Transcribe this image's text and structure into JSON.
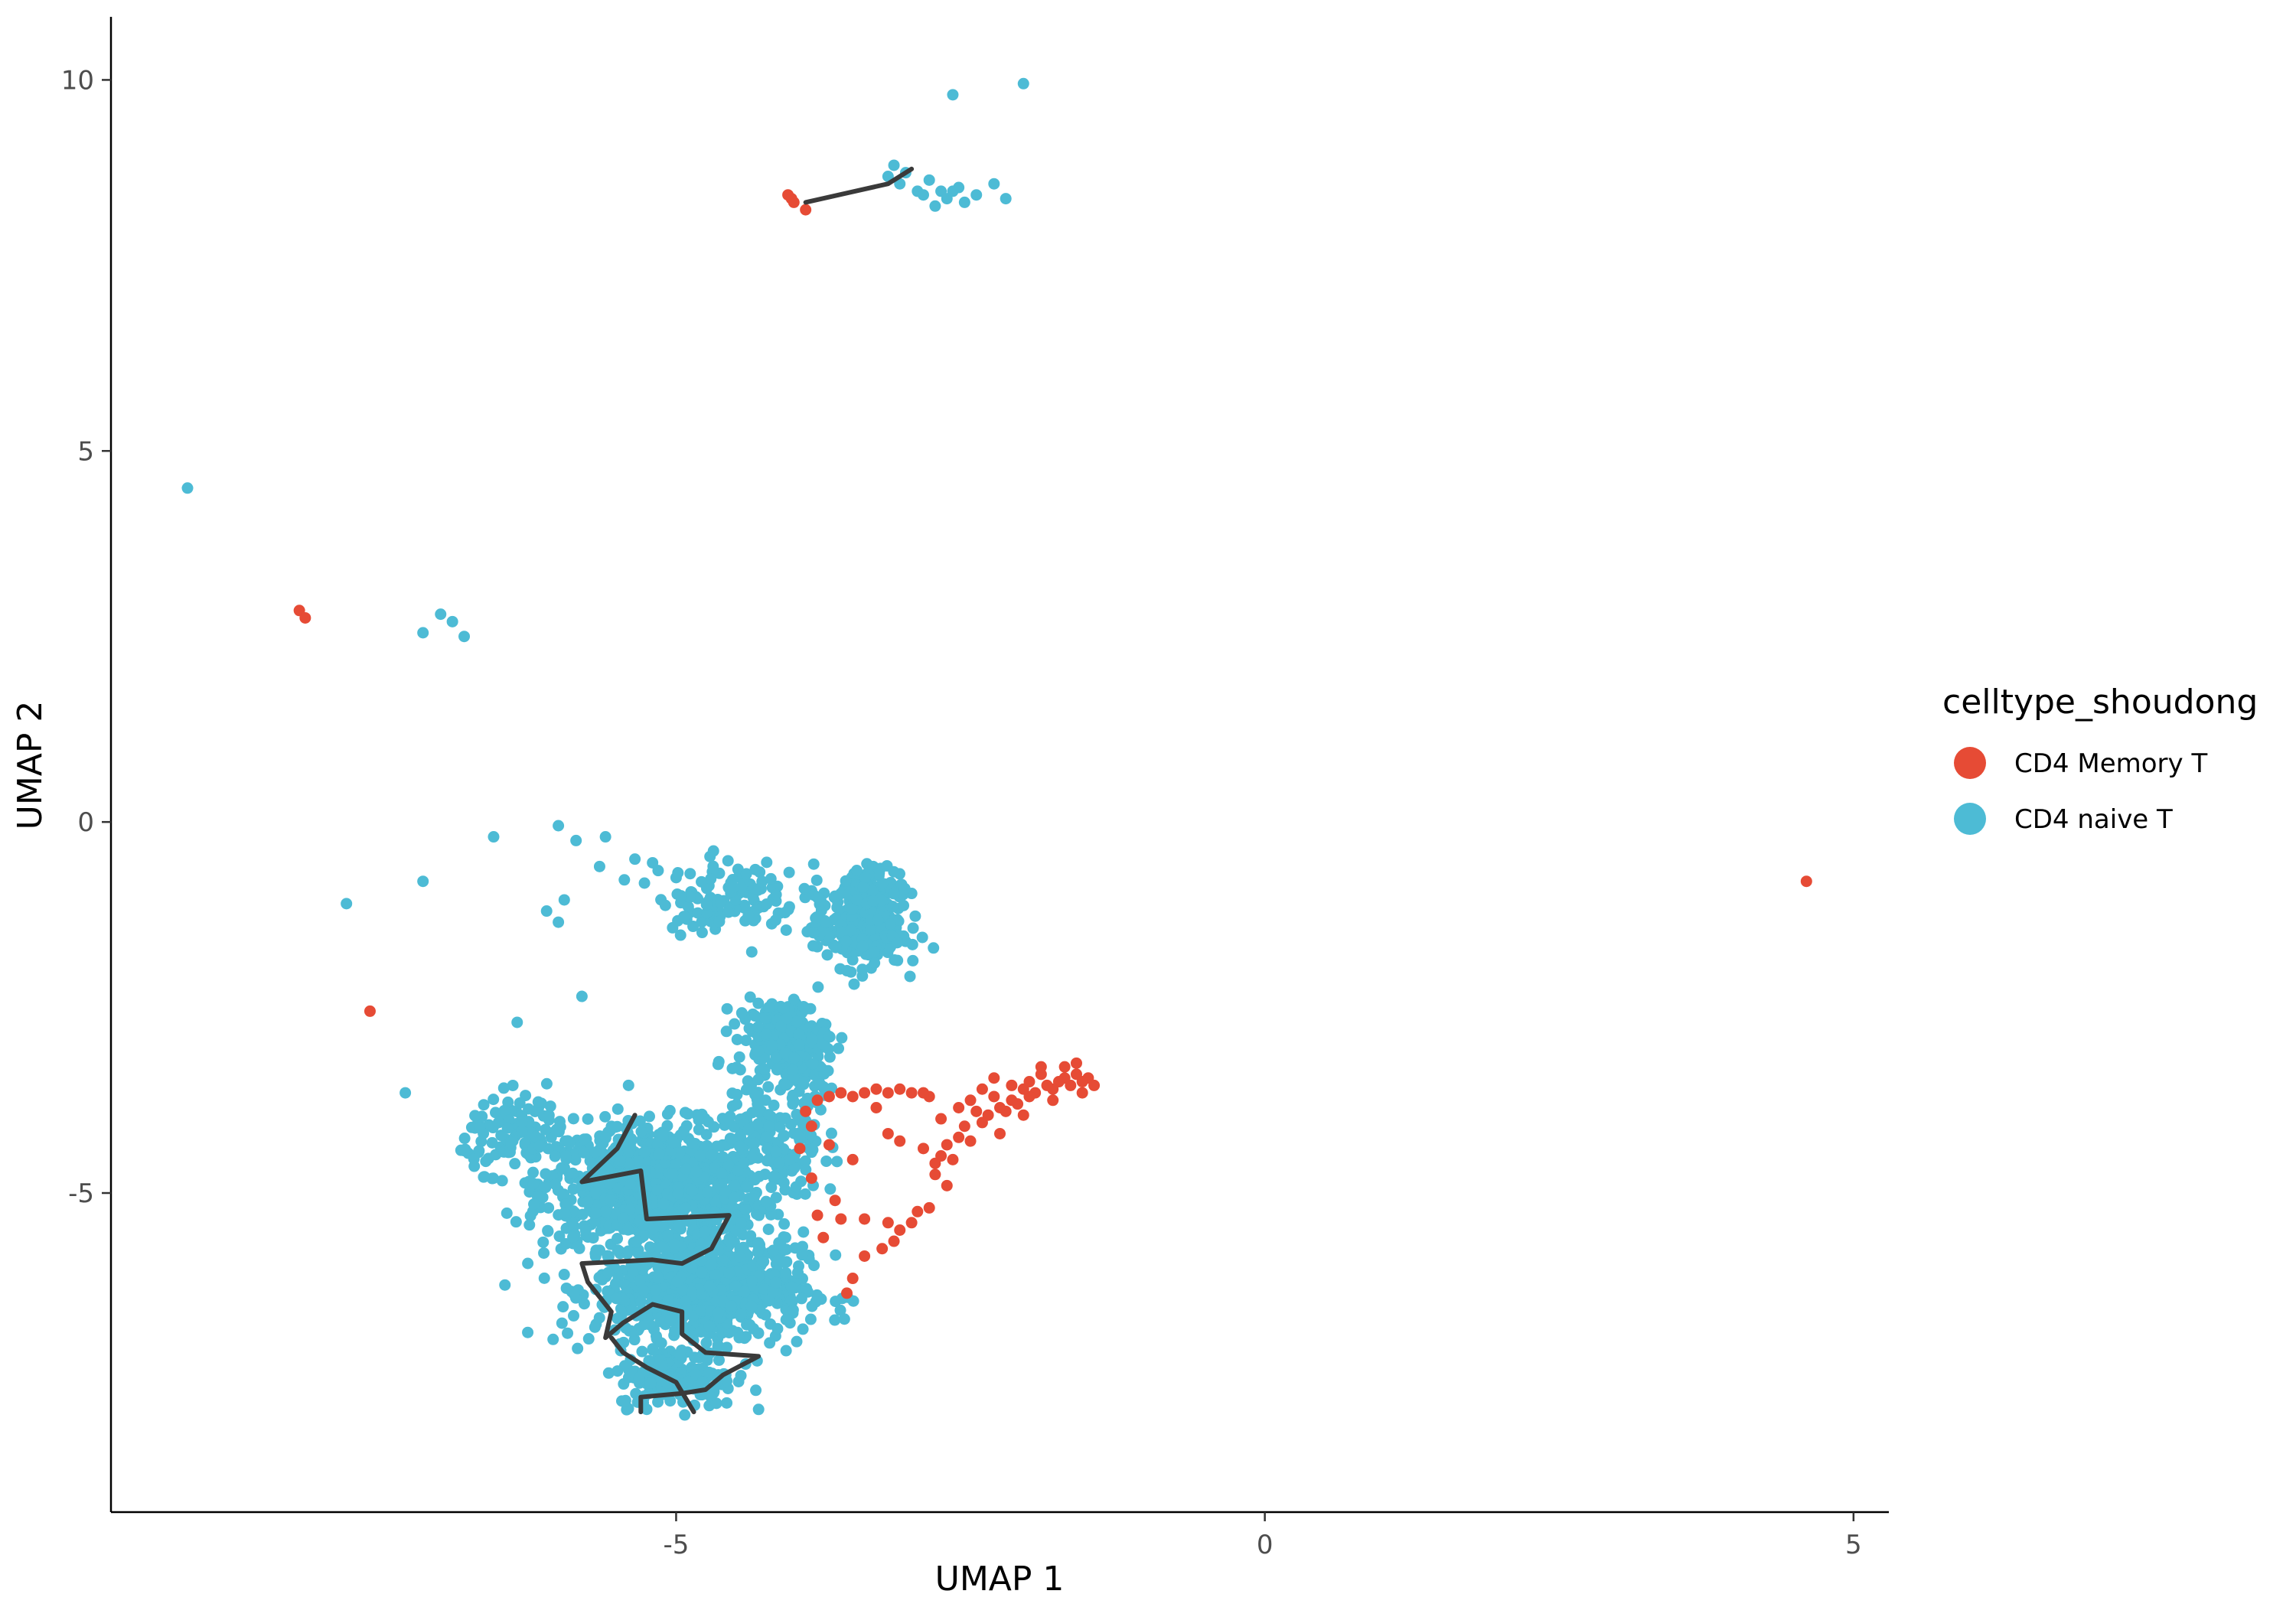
{
  "chart_data": {
    "type": "scatter",
    "title": "",
    "xlabel": "UMAP 1",
    "ylabel": "UMAP 2",
    "xlim": [
      -9.8,
      5.3
    ],
    "ylim": [
      -9.3,
      10.85
    ],
    "x_ticks": [
      -5,
      0,
      5
    ],
    "y_ticks": [
      -5,
      0,
      5,
      10
    ],
    "grid": false,
    "legend": {
      "title": "celltype_shoudong",
      "position": "right",
      "entries": [
        {
          "label": "CD4 Memory T",
          "color": "#E64B35"
        },
        {
          "label": "CD4 naive T",
          "color": "#4DBBD5"
        }
      ]
    },
    "series": [
      {
        "name": "CD4 Memory T",
        "color": "#E64B35",
        "points": [
          [
            -4.05,
            8.45
          ],
          [
            -4.0,
            8.35
          ],
          [
            -3.9,
            8.25
          ],
          [
            -4.02,
            8.4
          ],
          [
            -8.2,
            2.85
          ],
          [
            -8.15,
            2.75
          ],
          [
            -7.6,
            -2.55
          ],
          [
            4.6,
            -0.8
          ],
          [
            -1.5,
            -3.45
          ],
          [
            -1.55,
            -3.5
          ],
          [
            -1.6,
            -3.4
          ],
          [
            -1.65,
            -3.55
          ],
          [
            -1.7,
            -3.45
          ],
          [
            -1.75,
            -3.5
          ],
          [
            -1.8,
            -3.6
          ],
          [
            -1.85,
            -3.55
          ],
          [
            -1.9,
            -3.4
          ],
          [
            -1.95,
            -3.65
          ],
          [
            -2.0,
            -3.7
          ],
          [
            -2.05,
            -3.6
          ],
          [
            -2.1,
            -3.8
          ],
          [
            -2.15,
            -3.75
          ],
          [
            -2.2,
            -3.9
          ],
          [
            -2.25,
            -3.85
          ],
          [
            -2.3,
            -3.7
          ],
          [
            -2.35,
            -3.95
          ],
          [
            -2.4,
            -4.05
          ],
          [
            -2.45,
            -3.9
          ],
          [
            -2.5,
            -3.75
          ],
          [
            -2.55,
            -4.1
          ],
          [
            -2.6,
            -4.25
          ],
          [
            -2.7,
            -4.35
          ],
          [
            -2.75,
            -4.5
          ],
          [
            -2.8,
            -4.6
          ],
          [
            -2.85,
            -3.7
          ],
          [
            -2.9,
            -3.65
          ],
          [
            -3.0,
            -3.65
          ],
          [
            -3.1,
            -3.6
          ],
          [
            -3.2,
            -3.65
          ],
          [
            -3.3,
            -3.6
          ],
          [
            -3.4,
            -3.65
          ],
          [
            -3.5,
            -3.7
          ],
          [
            -3.6,
            -3.65
          ],
          [
            -3.7,
            -3.7
          ],
          [
            -3.8,
            -3.75
          ],
          [
            -3.9,
            -3.9
          ],
          [
            -3.85,
            -4.1
          ],
          [
            -3.7,
            -4.35
          ],
          [
            -3.5,
            -4.55
          ],
          [
            -3.3,
            -3.85
          ],
          [
            -3.2,
            -4.2
          ],
          [
            -3.1,
            -4.3
          ],
          [
            -2.9,
            -4.4
          ],
          [
            -2.8,
            -4.75
          ],
          [
            -2.7,
            -4.9
          ],
          [
            -2.85,
            -5.2
          ],
          [
            -2.95,
            -5.25
          ],
          [
            -3.0,
            -5.4
          ],
          [
            -3.1,
            -5.5
          ],
          [
            -3.15,
            -5.65
          ],
          [
            -3.25,
            -5.75
          ],
          [
            -3.4,
            -5.35
          ],
          [
            -3.6,
            -5.35
          ],
          [
            -3.8,
            -5.3
          ],
          [
            -3.75,
            -5.6
          ],
          [
            -3.5,
            -6.15
          ],
          [
            -3.55,
            -6.35
          ],
          [
            -3.4,
            -5.85
          ],
          [
            -3.2,
            -5.4
          ],
          [
            -2.0,
            -3.5
          ],
          [
            -1.45,
            -3.55
          ],
          [
            -1.6,
            -3.25
          ],
          [
            -1.7,
            -3.3
          ],
          [
            -1.9,
            -3.3
          ],
          [
            -2.15,
            -3.55
          ],
          [
            -2.25,
            -4.2
          ],
          [
            -2.5,
            -4.3
          ],
          [
            -2.65,
            -4.55
          ],
          [
            -3.95,
            -4.4
          ],
          [
            -3.85,
            -4.8
          ],
          [
            -3.65,
            -5.1
          ],
          [
            -2.4,
            -3.6
          ],
          [
            -2.3,
            -3.45
          ],
          [
            -1.55,
            -3.65
          ],
          [
            -1.8,
            -3.75
          ],
          [
            -2.05,
            -3.95
          ],
          [
            -2.6,
            -3.85
          ],
          [
            -2.75,
            -4.0
          ]
        ]
      },
      {
        "name": "CD4 naive T",
        "color": "#4DBBD5",
        "points": [
          [
            -2.05,
            9.95
          ],
          [
            -2.65,
            9.8
          ],
          [
            -3.15,
            8.85
          ],
          [
            -3.05,
            8.75
          ],
          [
            -3.1,
            8.6
          ],
          [
            -2.95,
            8.5
          ],
          [
            -2.85,
            8.65
          ],
          [
            -2.75,
            8.5
          ],
          [
            -2.7,
            8.4
          ],
          [
            -2.6,
            8.55
          ],
          [
            -2.55,
            8.35
          ],
          [
            -2.45,
            8.45
          ],
          [
            -2.3,
            8.6
          ],
          [
            -2.2,
            8.4
          ],
          [
            -2.8,
            8.3
          ],
          [
            -3.2,
            8.7
          ],
          [
            -2.9,
            8.45
          ],
          [
            -2.65,
            8.5
          ],
          [
            -9.15,
            4.5
          ],
          [
            -7.0,
            2.8
          ],
          [
            -6.9,
            2.7
          ],
          [
            -7.15,
            2.55
          ],
          [
            -6.8,
            2.5
          ],
          [
            -6.55,
            -0.2
          ],
          [
            -6.0,
            -0.05
          ],
          [
            -5.85,
            -0.25
          ],
          [
            -5.6,
            -0.2
          ],
          [
            -7.15,
            -0.8
          ],
          [
            -7.8,
            -1.1
          ],
          [
            -6.1,
            -1.2
          ],
          [
            -6.0,
            -1.35
          ],
          [
            -5.95,
            -1.05
          ],
          [
            -5.65,
            -0.6
          ],
          [
            -5.35,
            -0.5
          ],
          [
            -5.2,
            -0.55
          ],
          [
            -5.0,
            -0.75
          ],
          [
            -6.35,
            -2.7
          ],
          [
            -5.8,
            -2.35
          ],
          [
            -7.3,
            -3.65
          ]
        ],
        "clusters": [
          {
            "center": [
              -5.2,
              -4.9
            ],
            "spread": [
              0.85,
              0.75
            ],
            "count": 950
          },
          {
            "center": [
              -4.8,
              -6.3
            ],
            "spread": [
              0.8,
              0.7
            ],
            "count": 750
          },
          {
            "center": [
              -5.0,
              -7.5
            ],
            "spread": [
              0.45,
              0.35
            ],
            "count": 180
          },
          {
            "center": [
              -4.1,
              -2.9
            ],
            "spread": [
              0.35,
              0.45
            ],
            "count": 220
          },
          {
            "center": [
              -3.45,
              -1.45
            ],
            "spread": [
              0.35,
              0.45
            ],
            "count": 260
          },
          {
            "center": [
              -3.3,
              -0.9
            ],
            "spread": [
              0.25,
              0.25
            ],
            "count": 110
          },
          {
            "center": [
              -4.55,
              -1.0
            ],
            "spread": [
              0.55,
              0.45
            ],
            "count": 120
          },
          {
            "center": [
              -4.2,
              -4.3
            ],
            "spread": [
              0.4,
              0.85
            ],
            "count": 160
          },
          {
            "center": [
              -6.3,
              -4.2
            ],
            "spread": [
              0.45,
              0.45
            ],
            "count": 110
          },
          {
            "center": [
              -3.9,
              -3.5
            ],
            "spread": [
              0.25,
              0.35
            ],
            "count": 50
          }
        ]
      }
    ],
    "trajectory": [
      [
        [
          -3.9,
          8.35
        ],
        [
          -3.2,
          8.6
        ],
        [
          -3.0,
          8.8
        ]
      ],
      [
        [
          -5.35,
          -3.95
        ],
        [
          -5.5,
          -4.4
        ],
        [
          -5.8,
          -4.85
        ],
        [
          -5.3,
          -4.7
        ],
        [
          -5.25,
          -5.35
        ],
        [
          -4.55,
          -5.3
        ],
        [
          -4.7,
          -5.75
        ],
        [
          -4.95,
          -5.95
        ],
        [
          -5.2,
          -5.9
        ],
        [
          -5.8,
          -5.95
        ],
        [
          -5.75,
          -6.2
        ],
        [
          -5.55,
          -6.6
        ],
        [
          -5.6,
          -6.95
        ],
        [
          -5.45,
          -6.75
        ],
        [
          -5.2,
          -6.5
        ],
        [
          -4.95,
          -6.6
        ],
        [
          -4.95,
          -6.9
        ],
        [
          -4.75,
          -7.15
        ],
        [
          -4.3,
          -7.2
        ],
        [
          -4.6,
          -7.45
        ],
        [
          -4.75,
          -7.65
        ],
        [
          -4.95,
          -7.7
        ],
        [
          -5.3,
          -7.75
        ],
        [
          -5.3,
          -7.95
        ]
      ],
      [
        [
          -5.55,
          -6.95
        ],
        [
          -5.45,
          -7.15
        ],
        [
          -5.25,
          -7.35
        ],
        [
          -5.0,
          -7.55
        ],
        [
          -4.85,
          -7.95
        ]
      ]
    ]
  }
}
